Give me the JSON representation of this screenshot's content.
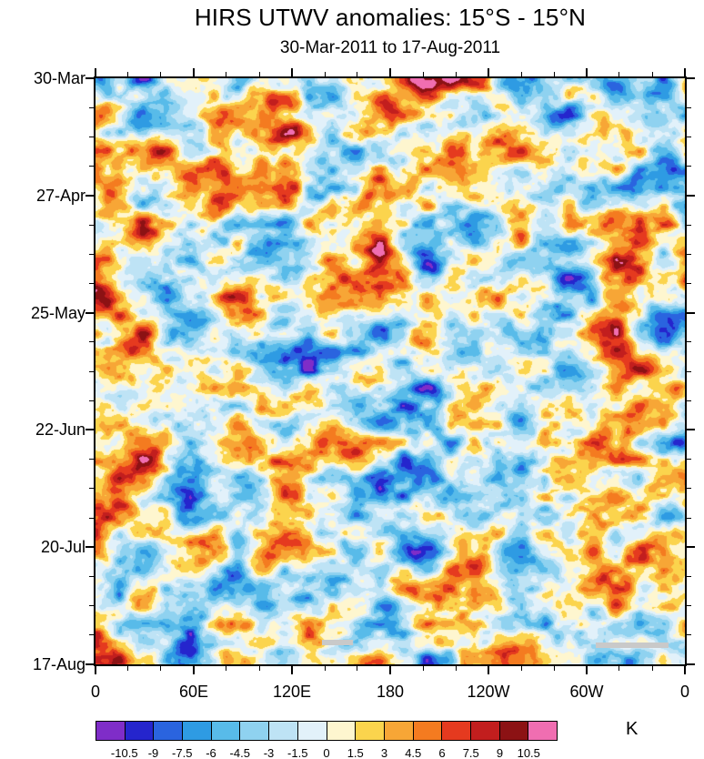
{
  "chart_data": {
    "type": "heatmap",
    "title": "HIRS UTWV anomalies: 15°S - 15°N",
    "subtitle": "30-Mar-2011 to 17-Aug-2011",
    "x_axis": {
      "ticks": [
        "0",
        "60E",
        "120E",
        "180",
        "120W",
        "60W",
        "0"
      ],
      "minor_ticks_per_interval": 2,
      "range_degrees": [
        0,
        360
      ]
    },
    "y_axis": {
      "ticks": [
        "30-Mar",
        "27-Apr",
        "25-May",
        "22-Jun",
        "20-Jul",
        "17-Aug"
      ],
      "minor_ticks_per_interval": 3,
      "span_days": 140,
      "direction": "time increases downward"
    },
    "colorbar": {
      "unit": "K",
      "levels": [
        -10.5,
        -9,
        -7.5,
        -6,
        -4.5,
        -3,
        -1.5,
        0,
        1.5,
        3,
        4.5,
        6,
        7.5,
        9,
        10.5
      ],
      "colors": [
        "#7F2DC8",
        "#2525CD",
        "#2A64DF",
        "#2E9BE3",
        "#58BBE9",
        "#8FD2F0",
        "#BEE3F5",
        "#E2F1FA",
        "#FEF6CF",
        "#FBD44D",
        "#F7A636",
        "#F47B20",
        "#E53A1F",
        "#C21E1E",
        "#8C1214",
        "#F06EB1"
      ]
    },
    "field": {
      "description": "Dense filled-contour longitude-time (Hovmoller) anomaly field; blobby positive (yellow-red) and negative (blue) anomalies, visually approximated procedurally",
      "value_range": [
        -12,
        12
      ]
    },
    "missing_data_bars": [
      {
        "x": 0.384,
        "y": 0.958,
        "w": 0.053,
        "h": 0.009,
        "color": "#C9C9C9"
      },
      {
        "x": 0.849,
        "y": 0.963,
        "w": 0.123,
        "h": 0.009,
        "color": "#C9C9C9"
      }
    ]
  }
}
